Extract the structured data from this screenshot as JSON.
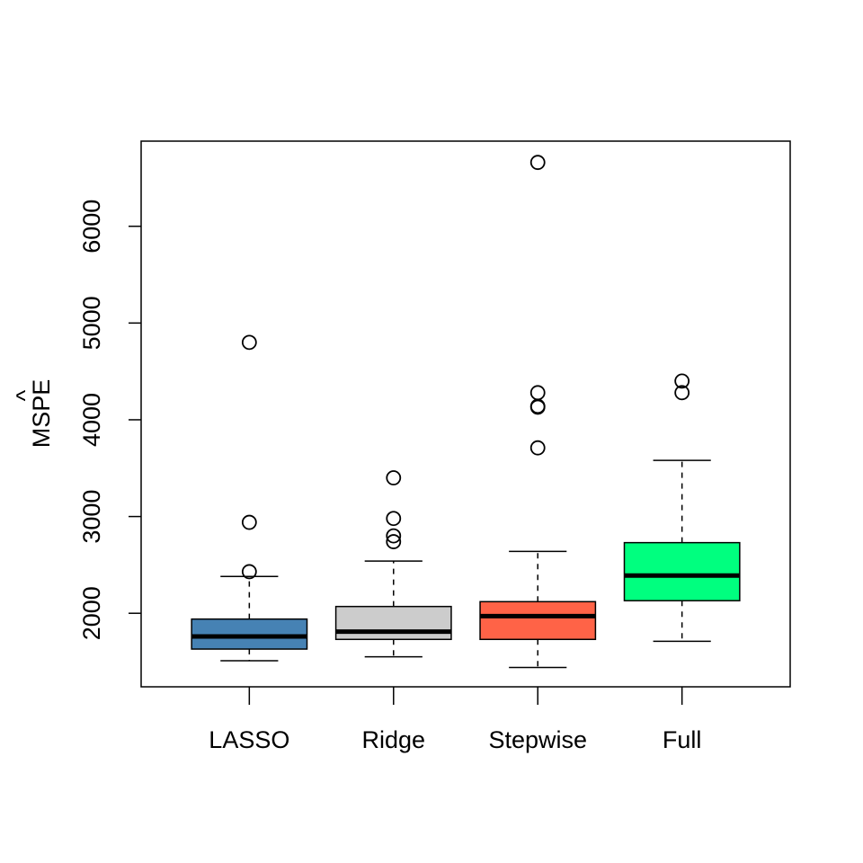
{
  "chart_data": {
    "type": "boxplot",
    "title": "",
    "xlabel": "",
    "ylabel": "MSPE",
    "ylabel_accent": "^",
    "ylim": [
      1240,
      6880
    ],
    "yticks": [
      2000,
      3000,
      4000,
      5000,
      6000
    ],
    "categories": [
      "LASSO",
      "Ridge",
      "Stepwise",
      "Full"
    ],
    "boxes": [
      {
        "name": "LASSO",
        "color": "#4682B4",
        "whisker_low": 1510,
        "q1": 1630,
        "median": 1760,
        "q3": 1940,
        "whisker_high": 2380,
        "outliers": [
          2430,
          2940,
          4800
        ]
      },
      {
        "name": "Ridge",
        "color": "#CCCCCC",
        "whisker_low": 1550,
        "q1": 1730,
        "median": 1810,
        "q3": 2070,
        "whisker_high": 2540,
        "outliers": [
          2740,
          2800,
          2980,
          3400
        ]
      },
      {
        "name": "Stepwise",
        "color": "#FF6347",
        "whisker_low": 1440,
        "q1": 1730,
        "median": 1970,
        "q3": 2120,
        "whisker_high": 2640,
        "outliers": [
          3710,
          4130,
          4140,
          4280,
          6660
        ]
      },
      {
        "name": "Full",
        "color": "#00FF7F",
        "whisker_low": 1710,
        "q1": 2130,
        "median": 2390,
        "q3": 2730,
        "whisker_high": 3580,
        "outliers": [
          4280,
          4400
        ]
      }
    ]
  }
}
